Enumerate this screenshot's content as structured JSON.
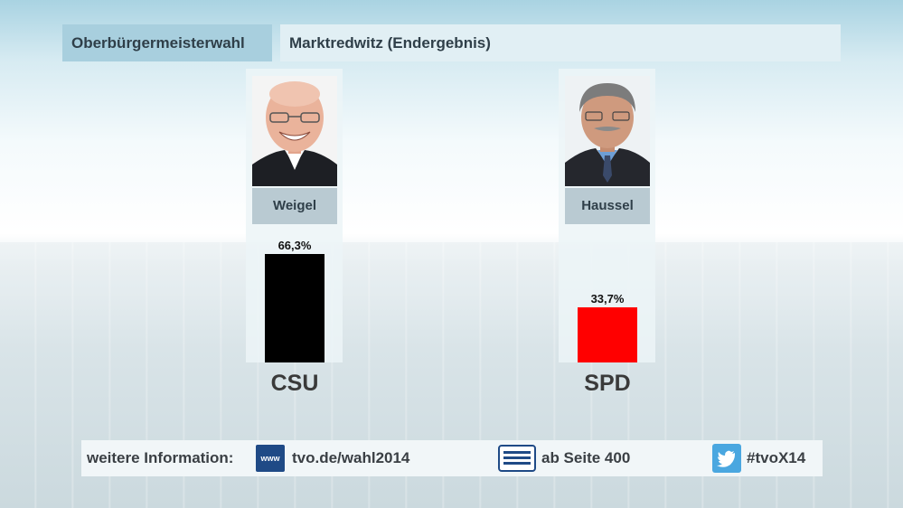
{
  "header": {
    "category": "Oberbürgermeisterwahl",
    "location": "Marktredwitz (Endergebnis)"
  },
  "candidates": [
    {
      "name": "Weigel",
      "party": "CSU"
    },
    {
      "name": "Haussel",
      "party": "SPD"
    }
  ],
  "chart_data": {
    "type": "bar",
    "categories": [
      "CSU",
      "SPD"
    ],
    "values": [
      66.3,
      33.7
    ],
    "value_labels": [
      "66,3%",
      "33,7%"
    ],
    "colors": [
      "#000000",
      "#ff0000"
    ],
    "ylim": [
      0,
      66.3
    ],
    "title": "",
    "xlabel": "",
    "ylabel": ""
  },
  "footer": {
    "label": "weitere Information:",
    "www_icon_text": "www",
    "website": "tvo.de/wahl2014",
    "teletext": "ab Seite 400",
    "hashtag": "#tvoX14",
    "icons": [
      "www-icon",
      "teletext-icon",
      "twitter-icon"
    ]
  }
}
